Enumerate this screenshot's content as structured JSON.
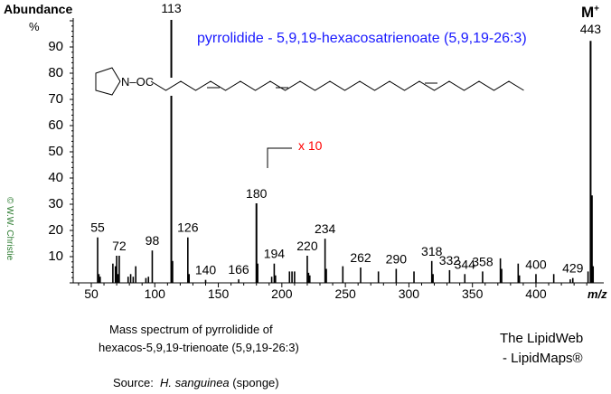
{
  "chart_data": {
    "type": "bar",
    "title": "pyrrolidide - 5,9,19-hexacosatrienoate  (5,9,19-26:3)",
    "ylabel": "Abundance",
    "ylabel_unit": "%",
    "xlabel": "m/z",
    "xlim": [
      30,
      447
    ],
    "ylim": [
      0,
      100
    ],
    "xticks": [
      50,
      100,
      150,
      200,
      250,
      300,
      350,
      400
    ],
    "yticks": [
      10,
      20,
      30,
      40,
      50,
      60,
      70,
      80,
      90
    ],
    "scale_note": "x 10",
    "scale_from_mz": 190,
    "molecular_ion_label": "M+",
    "structure_label": "N–OC",
    "peaks": [
      {
        "mz": 55,
        "y": 17,
        "label": "55"
      },
      {
        "mz": 56,
        "y": 3
      },
      {
        "mz": 57,
        "y": 2
      },
      {
        "mz": 67,
        "y": 7
      },
      {
        "mz": 69,
        "y": 6
      },
      {
        "mz": 70,
        "y": 10
      },
      {
        "mz": 71,
        "y": 3
      },
      {
        "mz": 72,
        "y": 10,
        "label": "72"
      },
      {
        "mz": 79,
        "y": 2
      },
      {
        "mz": 81,
        "y": 3
      },
      {
        "mz": 83,
        "y": 2
      },
      {
        "mz": 85,
        "y": 6
      },
      {
        "mz": 93,
        "y": 1.5
      },
      {
        "mz": 95,
        "y": 2
      },
      {
        "mz": 98,
        "y": 12,
        "label": "98"
      },
      {
        "mz": 113,
        "y": 100,
        "label": "113"
      },
      {
        "mz": 114,
        "y": 8
      },
      {
        "mz": 126,
        "y": 17,
        "label": "126"
      },
      {
        "mz": 127,
        "y": 3
      },
      {
        "mz": 140,
        "y": 0.8,
        "label": "140"
      },
      {
        "mz": 166,
        "y": 1,
        "label": "166"
      },
      {
        "mz": 180,
        "y": 30,
        "label": "180"
      },
      {
        "mz": 181,
        "y": 7
      },
      {
        "mz": 192,
        "y": 2
      },
      {
        "mz": 194,
        "y": 7,
        "label": "194"
      },
      {
        "mz": 195,
        "y": 2.5
      },
      {
        "mz": 206,
        "y": 4
      },
      {
        "mz": 208,
        "y": 4
      },
      {
        "mz": 210,
        "y": 4
      },
      {
        "mz": 220,
        "y": 10,
        "label": "220"
      },
      {
        "mz": 221,
        "y": 3.5
      },
      {
        "mz": 222,
        "y": 2.5
      },
      {
        "mz": 234,
        "y": 16.5,
        "label": "234"
      },
      {
        "mz": 235,
        "y": 5
      },
      {
        "mz": 248,
        "y": 6
      },
      {
        "mz": 262,
        "y": 5.5,
        "label": "262"
      },
      {
        "mz": 276,
        "y": 4
      },
      {
        "mz": 290,
        "y": 5,
        "label": "290"
      },
      {
        "mz": 304,
        "y": 4
      },
      {
        "mz": 318,
        "y": 8,
        "label": "318"
      },
      {
        "mz": 319,
        "y": 3
      },
      {
        "mz": 332,
        "y": 4.5,
        "label": "332"
      },
      {
        "mz": 344,
        "y": 3,
        "label": "344"
      },
      {
        "mz": 358,
        "y": 4,
        "label": "358"
      },
      {
        "mz": 372,
        "y": 9
      },
      {
        "mz": 373,
        "y": 5
      },
      {
        "mz": 386,
        "y": 7
      },
      {
        "mz": 387,
        "y": 2.5
      },
      {
        "mz": 400,
        "y": 3,
        "label": "400"
      },
      {
        "mz": 414,
        "y": 3
      },
      {
        "mz": 427,
        "y": 1
      },
      {
        "mz": 429,
        "y": 1.5,
        "label": "429"
      },
      {
        "mz": 441,
        "y": 4
      },
      {
        "mz": 443,
        "y": 92,
        "label": "443"
      },
      {
        "mz": 444,
        "y": 33
      },
      {
        "mz": 445,
        "y": 6
      }
    ],
    "colors": {
      "title": "#1a1aff",
      "scale_note": "#ff0000",
      "copyright": "#2e7d32"
    }
  },
  "caption": {
    "line1": "Mass spectrum of pyrrolidide of",
    "line2": "hexacos-5,9,19-trienoate (5,9,19-26:3)",
    "source_label": "Source:",
    "source_species": "H. sanguinea",
    "source_note": "(sponge)"
  },
  "branding": {
    "line1": "The LipidWeb",
    "line2": "- LipidMaps®"
  },
  "copyright": "© W.W. Christie"
}
